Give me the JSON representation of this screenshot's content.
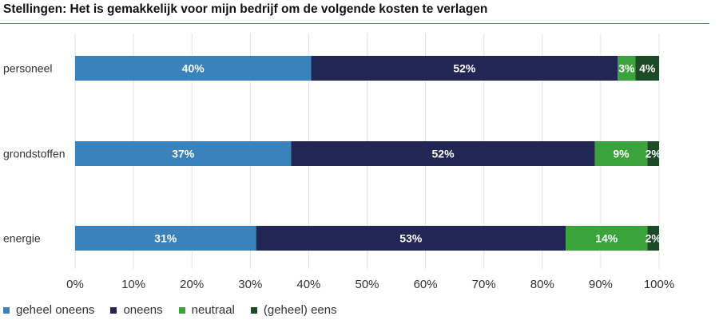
{
  "chart_data": {
    "type": "bar",
    "orientation": "horizontal",
    "stacked": true,
    "title": "Stellingen: Het is gemakkelijk voor mijn bedrijf om de volgende kosten te verlagen",
    "categories": [
      "personeel",
      "grondstoffen",
      "energie"
    ],
    "series": [
      {
        "name": "geheel oneens",
        "color": "#3a82bb",
        "values": [
          40,
          37,
          31
        ]
      },
      {
        "name": "oneens",
        "color": "#212654",
        "values": [
          52,
          52,
          53
        ]
      },
      {
        "name": "neutraal",
        "color": "#3aa33c",
        "values": [
          3,
          9,
          14
        ]
      },
      {
        "name": "(geheel) eens",
        "color": "#1d4a26",
        "values": [
          4,
          2,
          2
        ]
      }
    ],
    "xlim": [
      0,
      100
    ],
    "xticks": [
      "0%",
      "10%",
      "20%",
      "30%",
      "40%",
      "50%",
      "60%",
      "70%",
      "80%",
      "90%",
      "100%"
    ],
    "grid": true,
    "legend": "bottom-left"
  }
}
